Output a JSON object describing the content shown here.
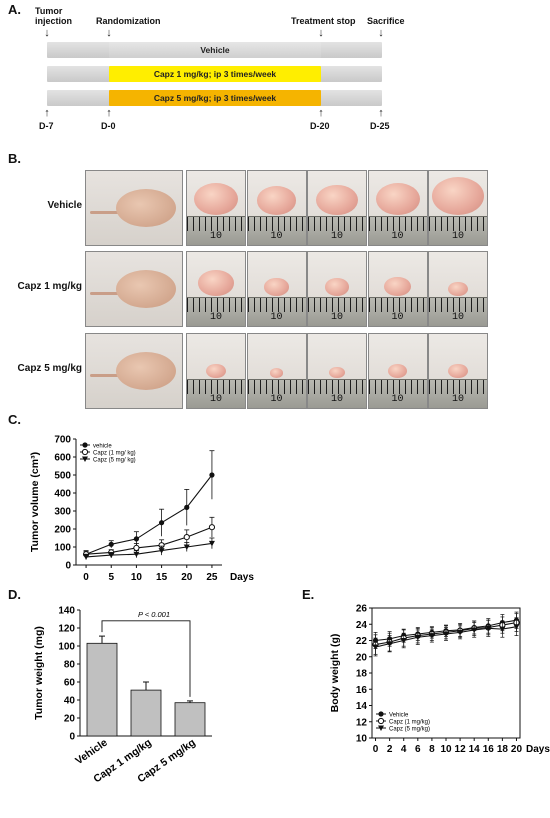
{
  "panelA": {
    "letter": "A.",
    "events": {
      "tumor_injection": "Tumor\ninjection",
      "randomization": "Randomization",
      "treatment_stop": "Treatment stop",
      "sacrifice": "Sacrifice"
    },
    "bars": {
      "vehicle": "Vehicle",
      "capz1": "Capz 1 mg/kg; ip 3 times/week",
      "capz5": "Capz 5 mg/kg; ip 3 times/week"
    },
    "days": [
      "D-7",
      "D-0",
      "D-20",
      "D-25"
    ],
    "colors": {
      "capz1": "#ffee00",
      "capz5": "#f5b400"
    }
  },
  "panelB": {
    "letter": "B.",
    "rows": [
      {
        "label": "Vehicle",
        "tumors": [
          1.0,
          0.9,
          0.95,
          1.0,
          1.2
        ]
      },
      {
        "label": "Capz 1 mg/kg",
        "tumors": [
          0.8,
          0.55,
          0.55,
          0.6,
          0.45
        ]
      },
      {
        "label": "Capz 5 mg/kg",
        "tumors": [
          0.45,
          0.3,
          0.35,
          0.45,
          0.45
        ]
      }
    ],
    "ruler_number": "10"
  },
  "panelC": {
    "letter": "C.",
    "chart_data": {
      "type": "line",
      "ylabel": "Tumor  volume (cm³)",
      "xlabel": "Days",
      "x": [
        0,
        5,
        10,
        15,
        20,
        25
      ],
      "xticks": [
        "0",
        "5",
        "10",
        "15",
        "20",
        "25"
      ],
      "yticks": [
        "0",
        "100",
        "200",
        "300",
        "400",
        "500",
        "600",
        "700"
      ],
      "ylim": [
        0,
        700
      ],
      "xlim": [
        -2,
        27
      ],
      "series": [
        {
          "name": "vehicle",
          "values": [
            60,
            115,
            145,
            235,
            320,
            500
          ],
          "err": [
            20,
            20,
            40,
            75,
            100,
            135
          ]
        },
        {
          "name": "Capz (1 mg/ kg)",
          "values": [
            60,
            70,
            95,
            110,
            155,
            210
          ],
          "err": [
            15,
            15,
            25,
            30,
            40,
            55
          ]
        },
        {
          "name": "Capz (5 mg/ kg)",
          "values": [
            45,
            55,
            60,
            80,
            100,
            120
          ],
          "err": [
            15,
            15,
            20,
            25,
            25,
            30
          ]
        }
      ],
      "legend": "top-left"
    }
  },
  "panelD": {
    "letter": "D.",
    "chart_data": {
      "type": "bar",
      "ylabel": "Tumor weight (mg)",
      "categories": [
        "Vehicle",
        "Capz 1 mg/kg",
        "Capz 5 mg/kg"
      ],
      "values": [
        103,
        51,
        37
      ],
      "err": [
        8,
        9,
        2
      ],
      "ylim": [
        0,
        140
      ],
      "yticks": [
        "0",
        "20",
        "40",
        "60",
        "80",
        "100",
        "120",
        "140"
      ],
      "annotation": "P < 0.001"
    }
  },
  "panelE": {
    "letter": "E.",
    "chart_data": {
      "type": "line",
      "ylabel": "Body weight (g)",
      "xlabel": "Days",
      "x": [
        0,
        2,
        4,
        6,
        8,
        10,
        12,
        14,
        16,
        18,
        20
      ],
      "xticks": [
        "0",
        "2",
        "4",
        "6",
        "8",
        "10",
        "12",
        "14",
        "16",
        "18",
        "20"
      ],
      "yticks": [
        "10",
        "12",
        "14",
        "16",
        "18",
        "20",
        "22",
        "24",
        "26"
      ],
      "ylim": [
        10,
        26
      ],
      "series": [
        {
          "name": "Vehicle",
          "values": [
            22.0,
            22.2,
            22.6,
            22.8,
            23.0,
            23.2,
            23.3,
            23.6,
            23.8,
            24.2,
            24.5
          ],
          "err": [
            1.0,
            0.9,
            0.8,
            0.8,
            0.7,
            0.7,
            0.8,
            0.8,
            0.9,
            1.0,
            1.0
          ]
        },
        {
          "name": "Capz (1 mg/kg)",
          "values": [
            21.5,
            21.8,
            22.3,
            22.6,
            22.8,
            23.0,
            23.2,
            23.5,
            23.6,
            23.9,
            24.2
          ],
          "err": [
            1.2,
            1.1,
            1.0,
            0.9,
            0.8,
            0.8,
            0.8,
            0.9,
            0.9,
            1.0,
            1.1
          ]
        },
        {
          "name": "Capz (5 mg/kg)",
          "values": [
            21.2,
            21.6,
            22.0,
            22.4,
            22.6,
            22.8,
            23.0,
            23.3,
            23.5,
            23.4,
            23.7
          ],
          "err": [
            1.1,
            1.0,
            0.9,
            0.9,
            0.8,
            0.8,
            0.8,
            0.9,
            1.0,
            1.0,
            1.1
          ]
        }
      ],
      "legend": "bottom-left"
    }
  }
}
